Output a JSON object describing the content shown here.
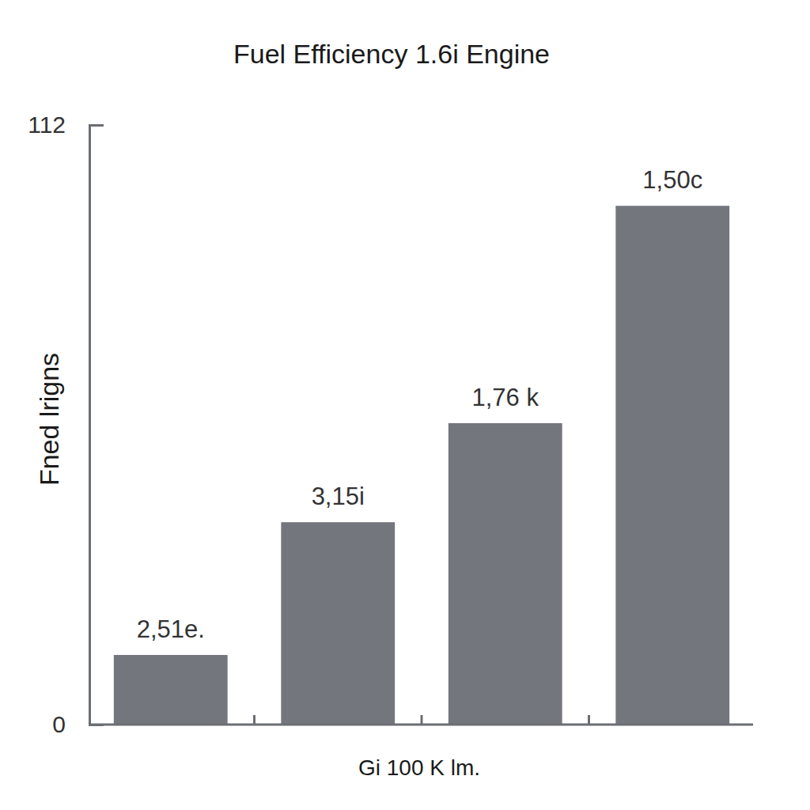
{
  "chart_data": {
    "type": "bar",
    "title": "Fuel Efficiency 1.6i Engine",
    "x_label": "Gi 100 K lm.",
    "y_label": "Fned lrigns",
    "categories": [
      null,
      null,
      null,
      null
    ],
    "values": [
      13.0,
      37.8,
      56.3,
      96.9
    ],
    "value_labels": [
      "2,51e.",
      "3,15i",
      "1,76 k",
      "1,50c"
    ],
    "data_labels": true,
    "color": "#73767d",
    "ylim": [
      0,
      112
    ],
    "yticks": [
      0,
      112
    ],
    "grid": false
  }
}
